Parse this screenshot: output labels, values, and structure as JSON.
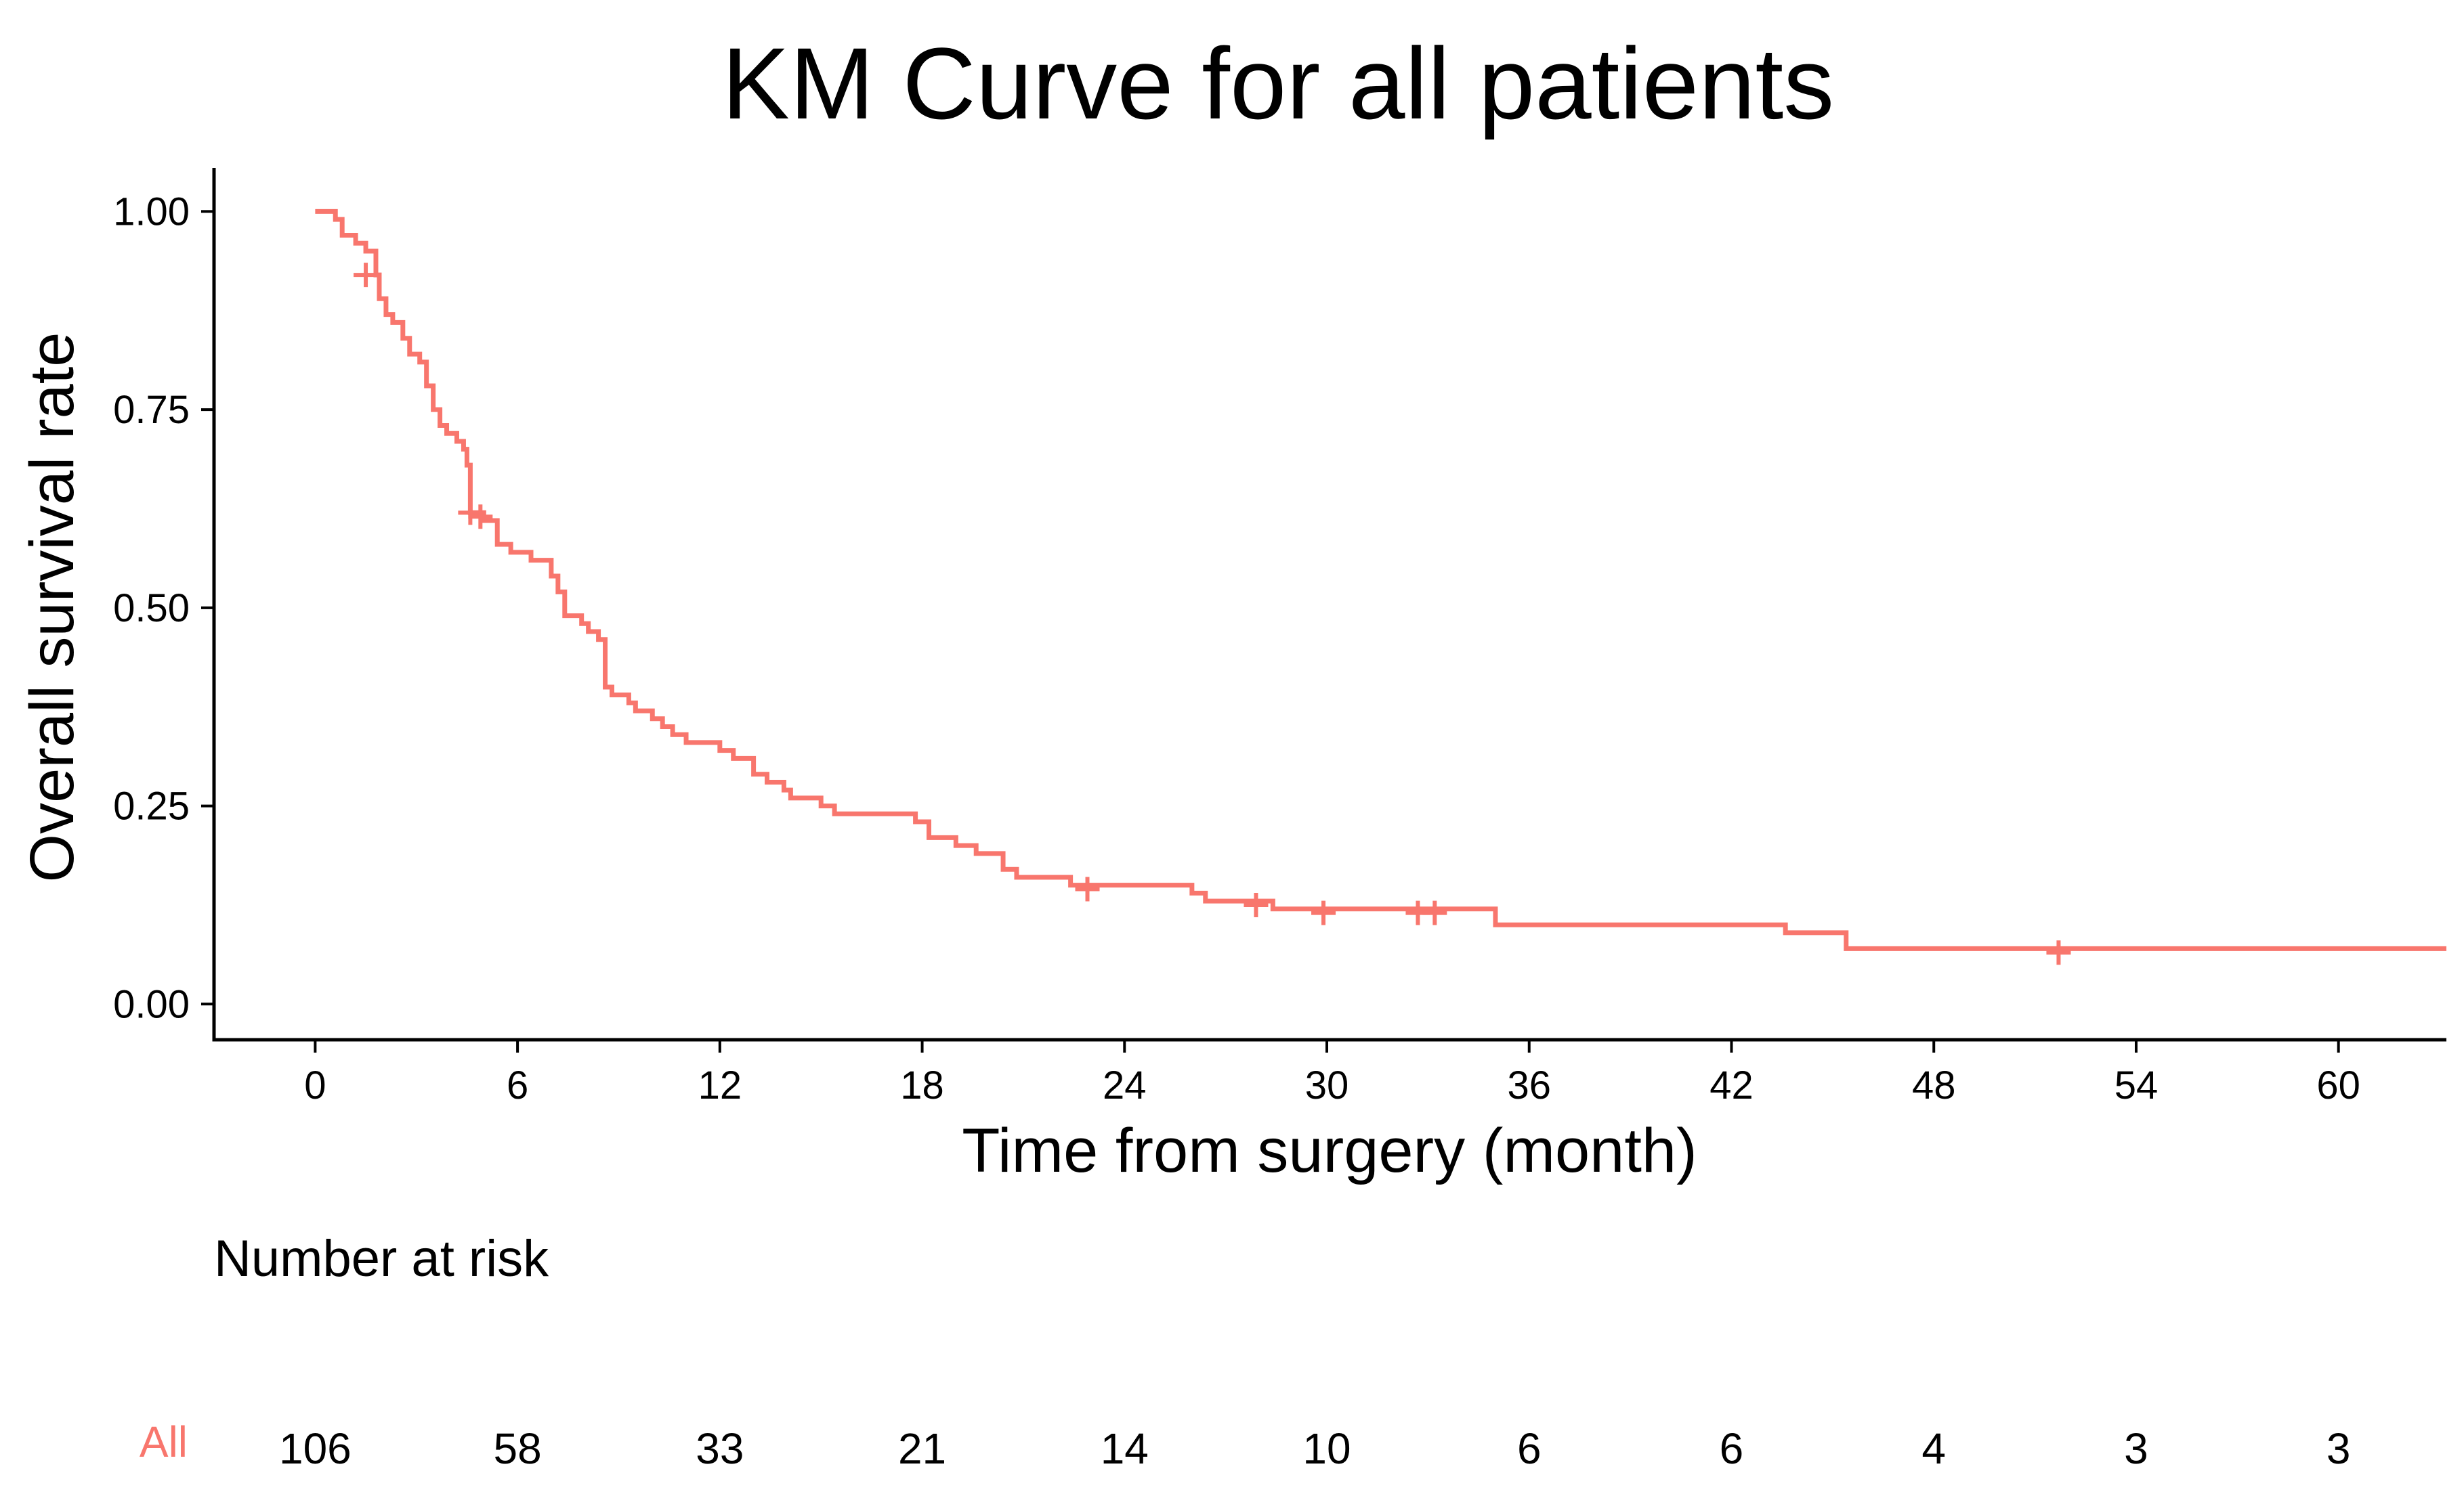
{
  "chart_data": {
    "type": "line",
    "title": "KM Curve for all patients",
    "xlabel": "Time from surgery (month)",
    "ylabel": "Overall survival rate",
    "xlim": [
      -3,
      63.2
    ],
    "ylim": [
      -0.045,
      1.055
    ],
    "x_ticks": [
      0,
      6,
      12,
      18,
      24,
      30,
      36,
      42,
      48,
      54,
      60
    ],
    "x_tick_labels": [
      "0",
      "6",
      "12",
      "18",
      "24",
      "30",
      "36",
      "42",
      "48",
      "54",
      "60"
    ],
    "y_ticks": [
      0,
      0.25,
      0.5,
      0.75,
      1.0
    ],
    "y_tick_labels": [
      "0.00",
      "0.25",
      "0.50",
      "0.75",
      "1.00"
    ],
    "grid": false,
    "legend": "none",
    "color": "#F8766D",
    "series": [
      {
        "steps": [
          [
            0,
            1.0
          ],
          [
            0.6,
            0.99
          ],
          [
            0.8,
            0.97
          ],
          [
            1.2,
            0.96
          ],
          [
            1.5,
            0.95
          ],
          [
            1.8,
            0.92
          ],
          [
            1.9,
            0.89
          ],
          [
            2.1,
            0.87
          ],
          [
            2.3,
            0.86
          ],
          [
            2.6,
            0.84
          ],
          [
            2.8,
            0.82
          ],
          [
            3.1,
            0.81
          ],
          [
            3.3,
            0.78
          ],
          [
            3.5,
            0.75
          ],
          [
            3.7,
            0.73
          ],
          [
            3.9,
            0.72
          ],
          [
            4.2,
            0.71
          ],
          [
            4.4,
            0.7
          ],
          [
            4.5,
            0.68
          ],
          [
            4.6,
            0.62
          ],
          [
            5.0,
            0.61
          ],
          [
            5.4,
            0.58
          ],
          [
            5.8,
            0.57
          ],
          [
            6.4,
            0.56
          ],
          [
            6.6,
            0.56
          ],
          [
            7.0,
            0.54
          ],
          [
            7.2,
            0.52
          ],
          [
            7.4,
            0.49
          ],
          [
            7.9,
            0.48
          ],
          [
            8.1,
            0.47
          ],
          [
            8.4,
            0.46
          ],
          [
            8.6,
            0.4
          ],
          [
            8.8,
            0.39
          ],
          [
            9.3,
            0.38
          ],
          [
            9.5,
            0.37
          ],
          [
            10.0,
            0.36
          ],
          [
            10.3,
            0.35
          ],
          [
            10.6,
            0.34
          ],
          [
            11.0,
            0.33
          ],
          [
            12.0,
            0.32
          ],
          [
            12.4,
            0.31
          ],
          [
            13.0,
            0.29
          ],
          [
            13.4,
            0.28
          ],
          [
            13.9,
            0.27
          ],
          [
            14.1,
            0.26
          ],
          [
            15.0,
            0.25
          ],
          [
            15.4,
            0.24
          ],
          [
            17.8,
            0.23
          ],
          [
            18.2,
            0.21
          ],
          [
            19.0,
            0.2
          ],
          [
            19.6,
            0.19
          ],
          [
            20.4,
            0.17
          ],
          [
            20.8,
            0.16
          ],
          [
            22.4,
            0.15
          ],
          [
            26.0,
            0.14
          ],
          [
            26.4,
            0.13
          ],
          [
            27.4,
            0.13
          ],
          [
            28.4,
            0.12
          ],
          [
            35.0,
            0.1
          ],
          [
            43.6,
            0.09
          ],
          [
            45.4,
            0.07
          ],
          [
            63.2,
            0.07
          ]
        ],
        "censored": [
          [
            1.5,
            0.92
          ],
          [
            4.6,
            0.62
          ],
          [
            4.9,
            0.615
          ],
          [
            22.9,
            0.145
          ],
          [
            27.9,
            0.125
          ],
          [
            29.9,
            0.115
          ],
          [
            32.7,
            0.115
          ],
          [
            33.2,
            0.115
          ],
          [
            51.7,
            0.065
          ]
        ]
      }
    ]
  },
  "risk_table": {
    "title": "Number at risk",
    "group_label": "All",
    "times": [
      0,
      6,
      12,
      18,
      24,
      30,
      36,
      42,
      48,
      54,
      60
    ],
    "counts": [
      "106",
      "58",
      "33",
      "21",
      "14",
      "10",
      "6",
      "6",
      "4",
      "3",
      "3"
    ]
  }
}
